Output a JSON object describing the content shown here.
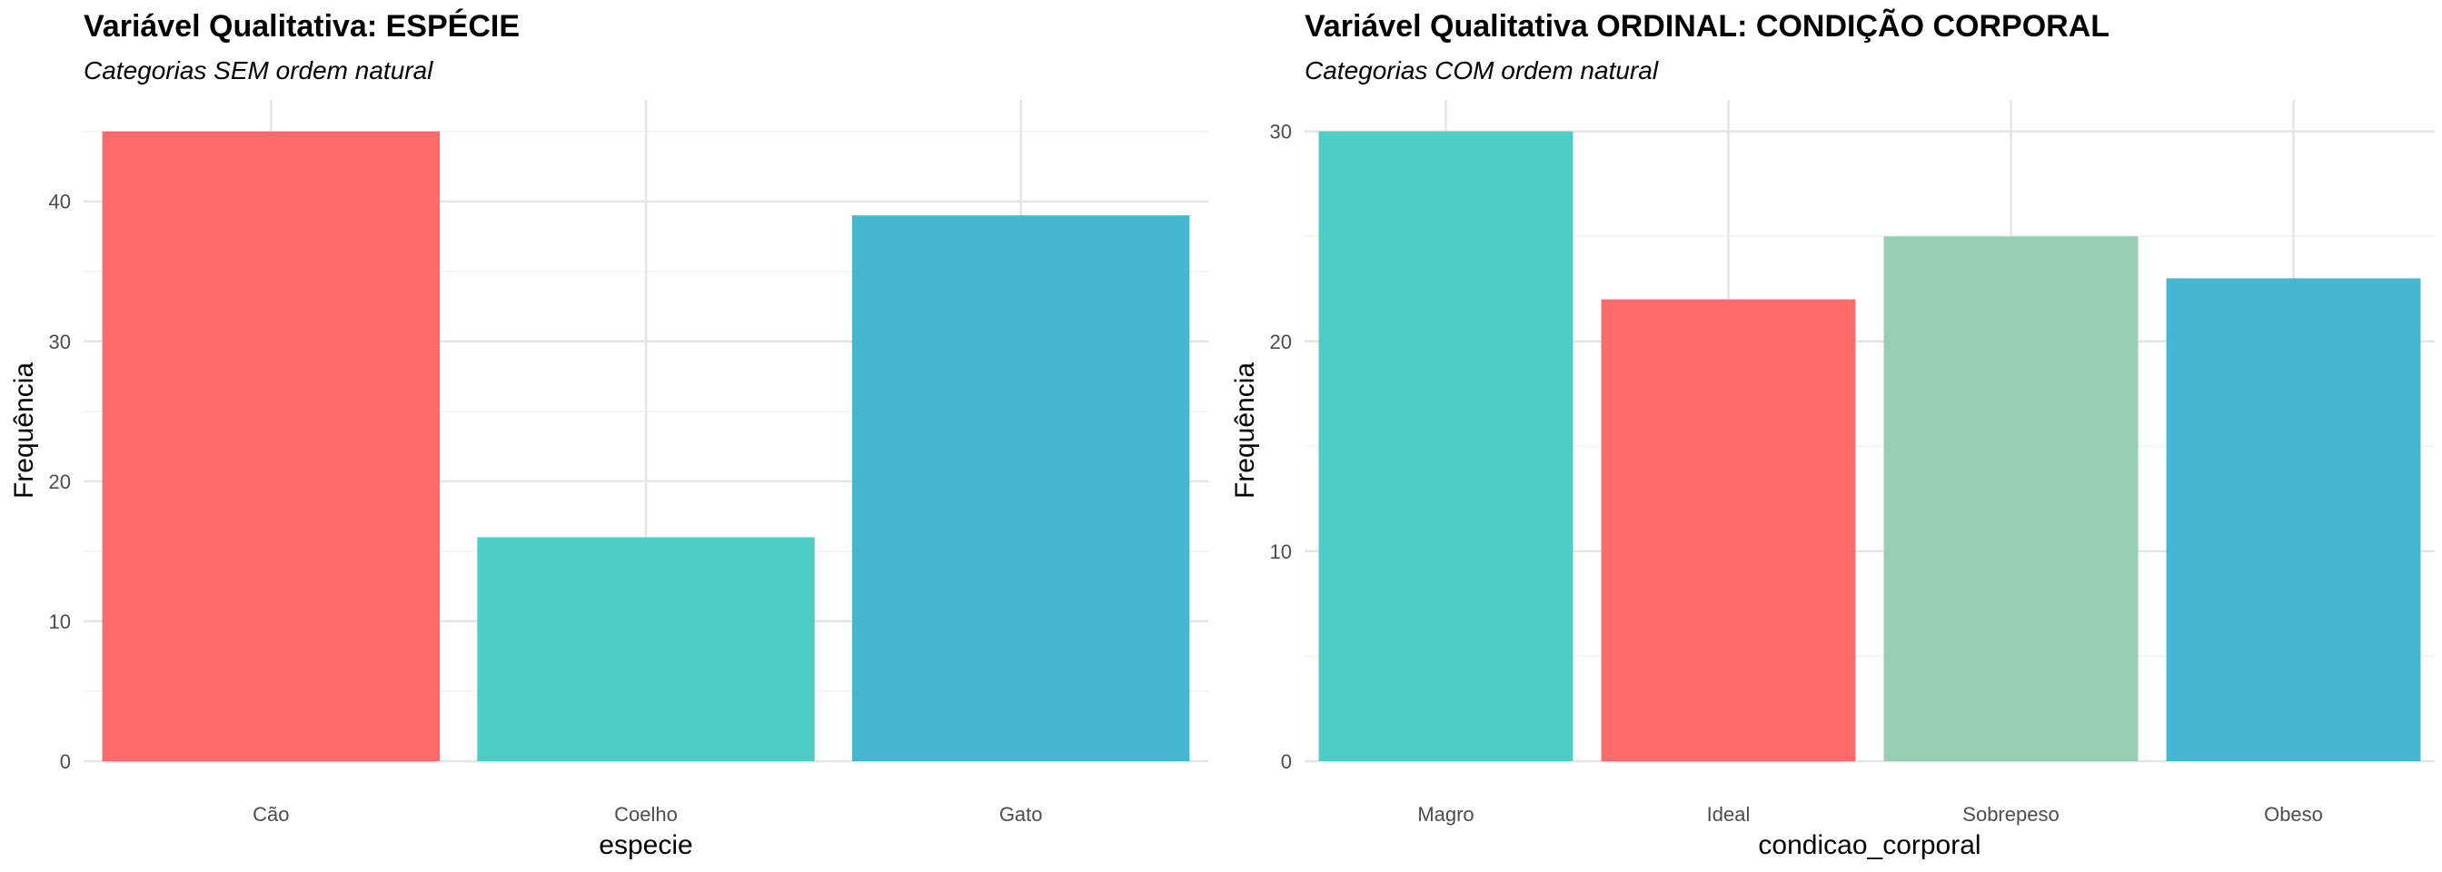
{
  "chart_data": [
    {
      "type": "bar",
      "title": "Variável Qualitativa: ESPÉCIE",
      "subtitle": "Categorias SEM ordem natural",
      "xlabel": "especie",
      "ylabel": "Frequência",
      "categories": [
        "Cão",
        "Coelho",
        "Gato"
      ],
      "values": [
        45,
        16,
        39
      ],
      "colors": [
        "#FF6B6B",
        "#4ECDC4",
        "#45B7D1"
      ],
      "yticks": [
        0,
        10,
        20,
        30,
        40
      ],
      "ylim": [
        0,
        47.25
      ],
      "grid": true,
      "legend": "none"
    },
    {
      "type": "bar",
      "title": "Variável Qualitativa ORDINAL: CONDIÇÃO CORPORAL",
      "subtitle": "Categorias COM ordem natural",
      "xlabel": "condicao_corporal",
      "ylabel": "Frequência",
      "categories": [
        "Magro",
        "Ideal",
        "Sobrepeso",
        "Obeso"
      ],
      "values": [
        30,
        22,
        25,
        23
      ],
      "colors": [
        "#4ECDC4",
        "#FF6B6B",
        "#96CEB4",
        "#45B7D1"
      ],
      "yticks": [
        0,
        10,
        20,
        30
      ],
      "ylim": [
        0,
        31.5
      ],
      "grid": true,
      "legend": "none"
    }
  ]
}
